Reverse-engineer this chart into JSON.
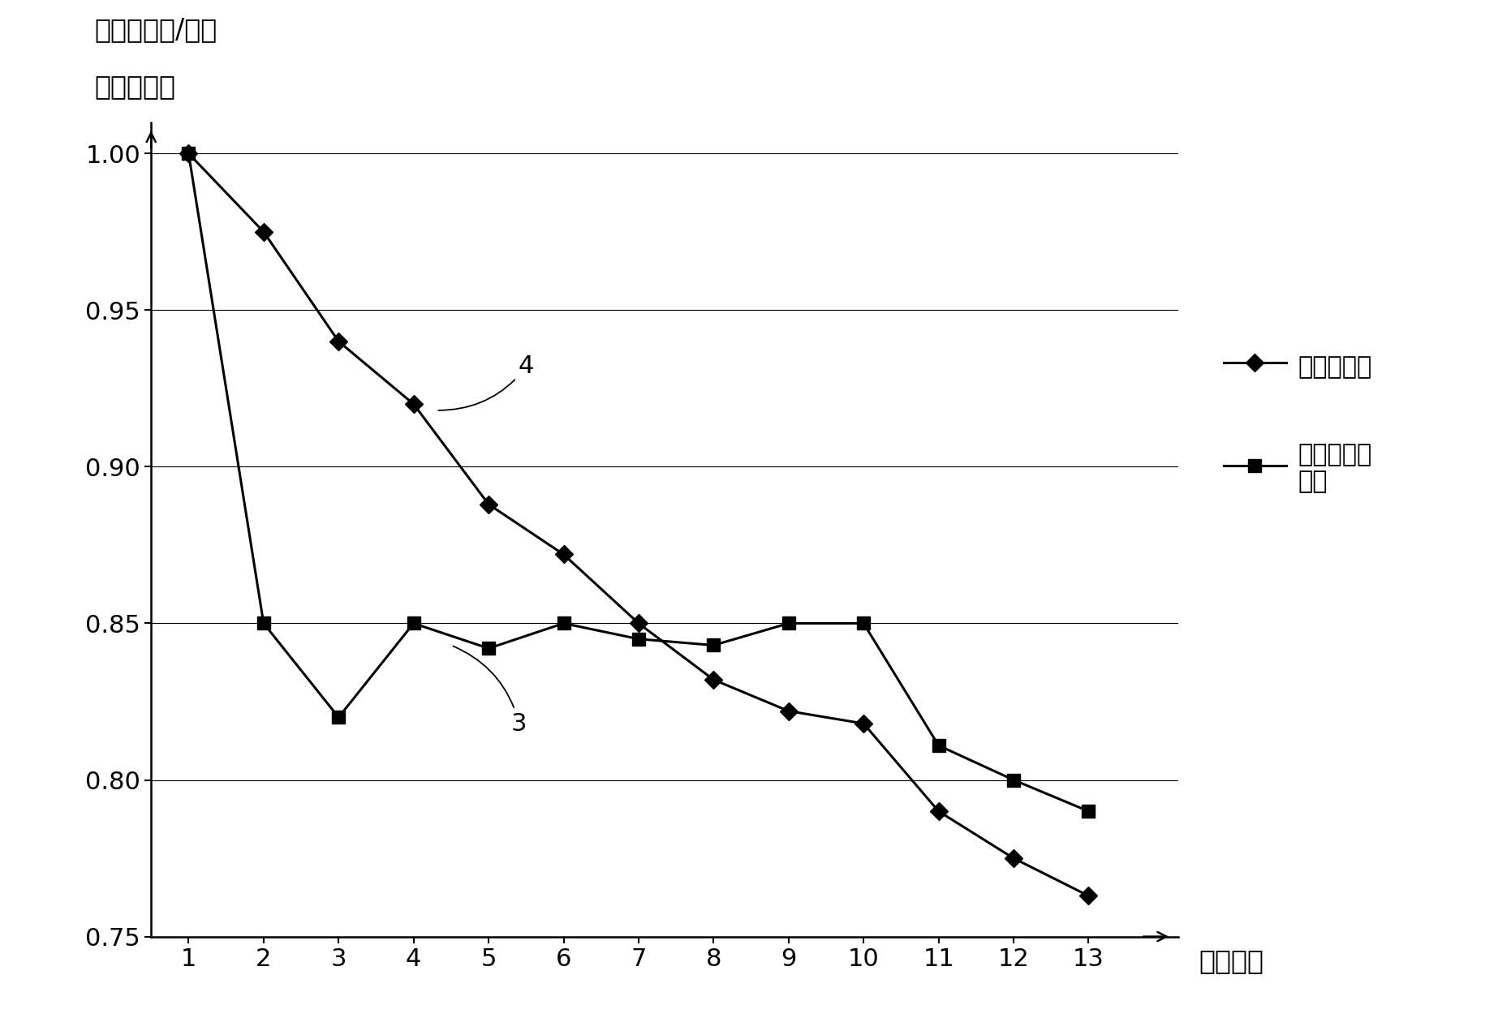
{
  "x": [
    1,
    2,
    3,
    4,
    5,
    6,
    7,
    8,
    9,
    10,
    11,
    12,
    13
  ],
  "capacity_decay": [
    1.0,
    0.975,
    0.94,
    0.92,
    0.888,
    0.872,
    0.85,
    0.832,
    0.822,
    0.818,
    0.79,
    0.775,
    0.763
  ],
  "resistance_change": [
    1.0,
    0.85,
    0.82,
    0.85,
    0.842,
    0.85,
    0.845,
    0.843,
    0.85,
    0.85,
    0.811,
    0.8,
    0.79
  ],
  "ylim": [
    0.75,
    1.01
  ],
  "xlim": [
    0.5,
    14.2
  ],
  "yticks": [
    0.75,
    0.8,
    0.85,
    0.9,
    0.95,
    1.0
  ],
  "xticks": [
    1,
    2,
    3,
    4,
    5,
    6,
    7,
    8,
    9,
    10,
    11,
    12,
    13
  ],
  "ylabel_line1": "容量衰减率/电池",
  "ylabel_line2": "内阻变化率",
  "xlabel": "循环次数",
  "legend_label1": "容量衰减率",
  "legend_label2": "电池内阻变\n化率",
  "line_color": "#000000",
  "line_width": 2.2,
  "marker_size": 11,
  "annotation_3": "3",
  "annotation_4": "4",
  "background_color": "#ffffff",
  "font_size_ticks": 22,
  "font_size_labels": 24,
  "font_size_legend": 22,
  "font_size_annot": 22
}
